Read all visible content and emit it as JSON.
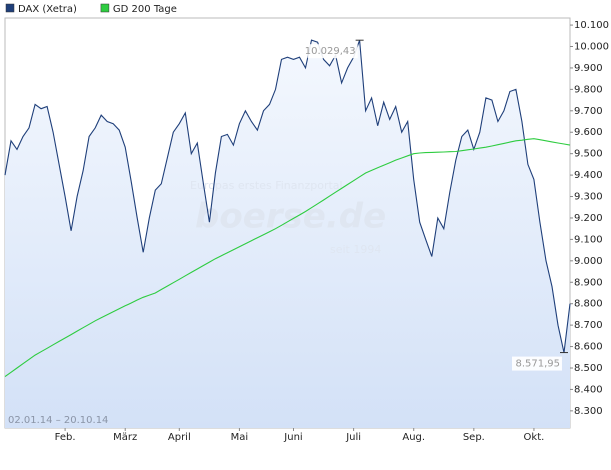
{
  "chart_data": {
    "type": "line",
    "date_range": "02.01.14 – 20.10.14",
    "watermark": {
      "tagline": "Europas erstes Finanzportal",
      "brand": "boerse.de",
      "since": "seit 1994"
    },
    "categories": [
      null,
      null,
      null,
      null,
      null,
      null,
      null,
      null,
      null,
      null,
      "Feb.",
      null,
      null,
      null,
      null,
      null,
      null,
      null,
      null,
      null,
      "März",
      null,
      null,
      null,
      null,
      null,
      null,
      null,
      null,
      "April",
      null,
      null,
      null,
      null,
      null,
      null,
      null,
      null,
      null,
      "Mai",
      null,
      null,
      null,
      null,
      null,
      null,
      null,
      null,
      "Juni",
      null,
      null,
      null,
      null,
      null,
      null,
      null,
      null,
      null,
      "Juli",
      null,
      null,
      null,
      null,
      null,
      null,
      null,
      null,
      null,
      "Aug.",
      null,
      null,
      null,
      null,
      null,
      null,
      null,
      null,
      null,
      "Sep.",
      null,
      null,
      null,
      null,
      null,
      null,
      null,
      null,
      null,
      "Okt.",
      null,
      null,
      null,
      null,
      null,
      null
    ],
    "series": [
      {
        "name": "DAX (Xetra)",
        "color": "#1f3f7a",
        "values": [
          9400,
          9560,
          9520,
          9580,
          9620,
          9730,
          9710,
          9720,
          9600,
          9450,
          9300,
          9140,
          9300,
          9420,
          9580,
          9620,
          9680,
          9650,
          9640,
          9610,
          9530,
          9370,
          9200,
          9040,
          9200,
          9330,
          9360,
          9480,
          9600,
          9640,
          9690,
          9500,
          9550,
          9360,
          9180,
          9410,
          9580,
          9590,
          9540,
          9640,
          9700,
          9650,
          9610,
          9700,
          9730,
          9800,
          9940,
          9950,
          9940,
          9950,
          9900,
          10030,
          10020,
          9940,
          9910,
          9960,
          9830,
          9900,
          9950,
          10029.43,
          9700,
          9760,
          9630,
          9740,
          9660,
          9720,
          9600,
          9650,
          9380,
          9180,
          9100,
          9020,
          9200,
          9150,
          9320,
          9470,
          9580,
          9610,
          9520,
          9600,
          9760,
          9750,
          9650,
          9700,
          9790,
          9800,
          9650,
          9450,
          9380,
          9180,
          9000,
          8880,
          8700,
          8571.95,
          8800
        ],
        "value_labels": [
          null,
          null,
          null,
          null,
          null,
          null,
          null,
          null,
          null,
          null,
          null,
          null,
          null,
          null,
          null,
          null,
          null,
          null,
          null,
          null,
          null,
          null,
          null,
          null,
          null,
          null,
          null,
          null,
          null,
          null,
          null,
          null,
          null,
          null,
          null,
          null,
          null,
          null,
          null,
          null,
          null,
          null,
          null,
          null,
          null,
          null,
          null,
          null,
          null,
          null,
          null,
          null,
          null,
          null,
          null,
          null,
          null,
          null,
          null,
          "10.029,43",
          null,
          null,
          null,
          null,
          null,
          null,
          null,
          null,
          null,
          null,
          null,
          null,
          null,
          null,
          null,
          null,
          null,
          null,
          null,
          null,
          null,
          null,
          null,
          null,
          null,
          null,
          null,
          null,
          null,
          null,
          null,
          null,
          null,
          "8.571,95",
          null
        ]
      },
      {
        "name": "GD 200 Tage",
        "color": "#2ecc40",
        "values": [
          8460,
          8480,
          8500,
          8520,
          8540,
          8560,
          8576,
          8592,
          8608,
          8624,
          8640,
          8656,
          8672,
          8688,
          8704,
          8720,
          8734,
          8748,
          8762,
          8776,
          8790,
          8803,
          8817,
          8830,
          8840,
          8850,
          8866,
          8882,
          8898,
          8914,
          8930,
          8946,
          8962,
          8978,
          8994,
          9010,
          9024,
          9038,
          9052,
          9066,
          9080,
          9094,
          9108,
          9122,
          9136,
          9150,
          9166,
          9182,
          9198,
          9214,
          9230,
          9248,
          9266,
          9284,
          9302,
          9320,
          9338,
          9356,
          9374,
          9392,
          9410,
          9422,
          9434,
          9446,
          9458,
          9470,
          9480,
          9490,
          9500,
          9503,
          9505,
          9506,
          9507,
          9508,
          9509,
          9510,
          9514,
          9518,
          9522,
          9526,
          9530,
          9536,
          9542,
          9548,
          9554,
          9560,
          9563,
          9567,
          9570,
          9565,
          9560,
          9555,
          9550,
          9545,
          9540
        ]
      }
    ],
    "ylim": [
      8220,
      10133
    ],
    "yticks": [
      {
        "value": 8300,
        "label": "8.300"
      },
      {
        "value": 8400,
        "label": "8.400"
      },
      {
        "value": 8500,
        "label": "8.500"
      },
      {
        "value": 8600,
        "label": "8.600"
      },
      {
        "value": 8700,
        "label": "8.700"
      },
      {
        "value": 8800,
        "label": "8.800"
      },
      {
        "value": 8900,
        "label": "8.900"
      },
      {
        "value": 9000,
        "label": "9.000"
      },
      {
        "value": 9100,
        "label": "9.100"
      },
      {
        "value": 9200,
        "label": "9.200"
      },
      {
        "value": 9300,
        "label": "9.300"
      },
      {
        "value": 9400,
        "label": "9.400"
      },
      {
        "value": 9500,
        "label": "9.500"
      },
      {
        "value": 9600,
        "label": "9.600"
      },
      {
        "value": 9700,
        "label": "9.700"
      },
      {
        "value": 9800,
        "label": "9.800"
      },
      {
        "value": 9900,
        "label": "9.900"
      },
      {
        "value": 10000,
        "label": "10.000"
      },
      {
        "value": 10100,
        "label": "10.100"
      }
    ],
    "grid": false
  }
}
